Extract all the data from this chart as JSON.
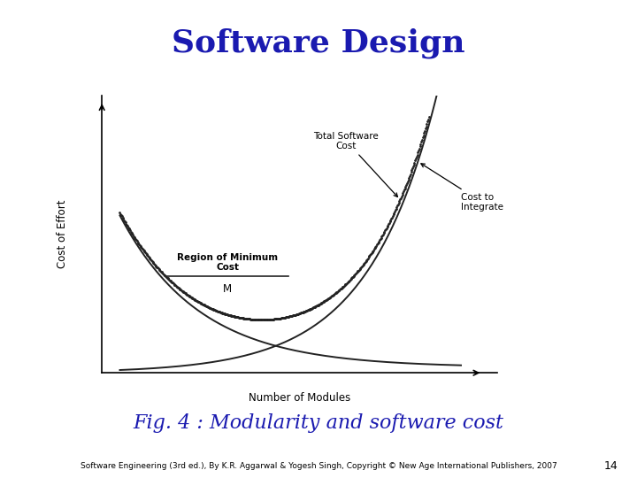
{
  "title": "Software Design",
  "title_color": "#1a1ab0",
  "title_fontsize": 26,
  "title_fontweight": "bold",
  "red_line_color": "#cc0000",
  "fig_caption": "Fig. 4 : Modularity and software cost",
  "fig_caption_color": "#1a1ab0",
  "fig_caption_fontsize": 16,
  "footer_text": "Software Engineering (3rd ed.), By K.R. Aggarwal & Yogesh Singh, Copyright © New Age International Publishers, 2007",
  "footer_fontsize": 6.5,
  "page_number": "14",
  "xlabel": "Number of Modules",
  "ylabel": "Cost of Effort",
  "label_total_software_cost": "Total Software\nCost",
  "label_cost_to_integrate": "Cost to\nIntegrate",
  "label_region_min_cost": "Region of Minimum\nCost",
  "label_M": "M",
  "background_color": "#ffffff",
  "curve_color": "#222222"
}
